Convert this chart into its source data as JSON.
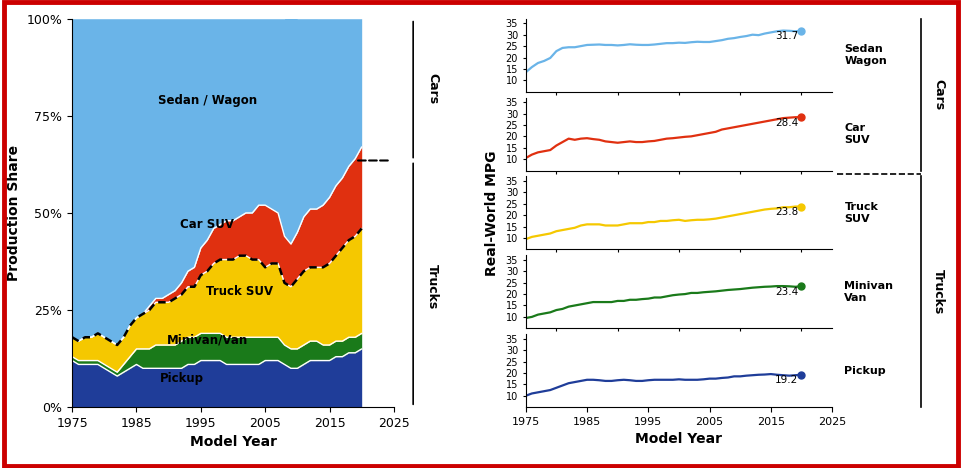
{
  "colors": {
    "pickup": "#1f3d99",
    "minivan": "#1a7a1a",
    "truck_suv": "#f5c800",
    "car_suv": "#e03010",
    "sedan": "#6ab4e8",
    "border": "#cc0000"
  },
  "stack_years": [
    1975,
    1976,
    1977,
    1978,
    1979,
    1980,
    1981,
    1982,
    1983,
    1984,
    1985,
    1986,
    1987,
    1988,
    1989,
    1990,
    1991,
    1992,
    1993,
    1994,
    1995,
    1996,
    1997,
    1998,
    1999,
    2000,
    2001,
    2002,
    2003,
    2004,
    2005,
    2006,
    2007,
    2008,
    2009,
    2010,
    2011,
    2012,
    2013,
    2014,
    2015,
    2016,
    2017,
    2018,
    2019,
    2020
  ],
  "pickup": [
    12,
    11,
    11,
    11,
    11,
    10,
    9,
    8,
    9,
    10,
    11,
    10,
    10,
    10,
    10,
    10,
    10,
    10,
    11,
    11,
    12,
    12,
    12,
    12,
    11,
    11,
    11,
    11,
    11,
    11,
    12,
    12,
    12,
    11,
    10,
    10,
    11,
    12,
    12,
    12,
    12,
    13,
    13,
    14,
    14,
    15
  ],
  "minivan": [
    1,
    1,
    1,
    1,
    1,
    1,
    1,
    1,
    2,
    3,
    4,
    5,
    5,
    6,
    6,
    6,
    6,
    7,
    7,
    7,
    7,
    7,
    7,
    7,
    7,
    7,
    7,
    7,
    7,
    7,
    6,
    6,
    6,
    5,
    5,
    5,
    5,
    5,
    5,
    4,
    4,
    4,
    4,
    4,
    4,
    4
  ],
  "truck_suv": [
    5,
    5,
    6,
    6,
    7,
    7,
    7,
    7,
    7,
    8,
    8,
    9,
    10,
    11,
    11,
    11,
    12,
    12,
    13,
    13,
    15,
    16,
    18,
    19,
    20,
    20,
    21,
    21,
    20,
    20,
    18,
    19,
    19,
    16,
    16,
    18,
    19,
    19,
    19,
    20,
    21,
    22,
    24,
    25,
    26,
    27
  ],
  "car_suv": [
    0,
    0,
    0,
    0,
    0,
    0,
    0,
    0,
    0,
    0,
    0,
    0,
    1,
    1,
    1,
    2,
    2,
    3,
    4,
    5,
    7,
    8,
    9,
    9,
    10,
    10,
    10,
    11,
    12,
    14,
    16,
    14,
    13,
    12,
    11,
    12,
    14,
    15,
    15,
    16,
    17,
    18,
    18,
    19,
    20,
    21
  ],
  "sedan": [
    82,
    83,
    82,
    82,
    81,
    82,
    83,
    84,
    82,
    79,
    77,
    76,
    74,
    72,
    72,
    71,
    70,
    68,
    65,
    64,
    59,
    57,
    54,
    53,
    52,
    52,
    51,
    50,
    50,
    48,
    48,
    49,
    50,
    56,
    59,
    55,
    51,
    49,
    49,
    48,
    46,
    43,
    41,
    38,
    36,
    33
  ],
  "mpg_years": [
    1975,
    1976,
    1977,
    1978,
    1979,
    1980,
    1981,
    1982,
    1983,
    1984,
    1985,
    1986,
    1987,
    1988,
    1989,
    1990,
    1991,
    1992,
    1993,
    1994,
    1995,
    1996,
    1997,
    1998,
    1999,
    2000,
    2001,
    2002,
    2003,
    2004,
    2005,
    2006,
    2007,
    2008,
    2009,
    2010,
    2011,
    2012,
    2013,
    2014,
    2015,
    2016,
    2017,
    2018,
    2019,
    2020
  ],
  "mpg_sedan": [
    13.5,
    15.8,
    17.6,
    18.5,
    19.8,
    22.8,
    24.2,
    24.5,
    24.5,
    25.0,
    25.5,
    25.6,
    25.7,
    25.5,
    25.5,
    25.3,
    25.5,
    25.8,
    25.6,
    25.5,
    25.5,
    25.7,
    26.0,
    26.3,
    26.3,
    26.5,
    26.4,
    26.7,
    26.9,
    26.8,
    26.8,
    27.2,
    27.6,
    28.2,
    28.5,
    29.0,
    29.4,
    30.0,
    29.8,
    30.5,
    31.0,
    31.5,
    31.8,
    31.7,
    31.5,
    31.7
  ],
  "mpg_car_suv": [
    10.5,
    12.0,
    13.0,
    13.5,
    14.0,
    16.0,
    17.5,
    19.0,
    18.5,
    19.0,
    19.2,
    18.8,
    18.5,
    17.8,
    17.5,
    17.2,
    17.5,
    17.8,
    17.5,
    17.5,
    17.8,
    18.0,
    18.5,
    19.0,
    19.2,
    19.5,
    19.8,
    20.0,
    20.5,
    21.0,
    21.5,
    22.0,
    23.0,
    23.5,
    24.0,
    24.5,
    25.0,
    25.5,
    26.0,
    26.5,
    27.0,
    27.5,
    28.0,
    28.2,
    28.4,
    28.4
  ],
  "mpg_truck_suv": [
    9.5,
    10.5,
    11.0,
    11.5,
    12.0,
    13.0,
    13.5,
    14.0,
    14.5,
    15.5,
    16.0,
    16.0,
    16.0,
    15.5,
    15.5,
    15.5,
    16.0,
    16.5,
    16.5,
    16.5,
    17.0,
    17.0,
    17.5,
    17.5,
    17.8,
    18.0,
    17.5,
    17.8,
    18.0,
    18.0,
    18.2,
    18.5,
    19.0,
    19.5,
    20.0,
    20.5,
    21.0,
    21.5,
    22.0,
    22.5,
    22.8,
    23.0,
    23.5,
    23.5,
    23.8,
    23.8
  ],
  "mpg_minivan": [
    9.5,
    10.0,
    11.0,
    11.5,
    12.0,
    13.0,
    13.5,
    14.5,
    15.0,
    15.5,
    16.0,
    16.5,
    16.5,
    16.5,
    16.5,
    17.0,
    17.0,
    17.5,
    17.5,
    17.8,
    18.0,
    18.5,
    18.5,
    19.0,
    19.5,
    19.8,
    20.0,
    20.5,
    20.5,
    20.8,
    21.0,
    21.2,
    21.5,
    21.8,
    22.0,
    22.2,
    22.5,
    22.8,
    23.0,
    23.2,
    23.3,
    23.5,
    23.5,
    23.4,
    23.2,
    23.4
  ],
  "mpg_pickup": [
    10.0,
    11.0,
    11.5,
    12.0,
    12.5,
    13.5,
    14.5,
    15.5,
    16.0,
    16.5,
    17.0,
    17.0,
    16.8,
    16.5,
    16.5,
    16.8,
    17.0,
    16.8,
    16.5,
    16.5,
    16.8,
    17.0,
    17.0,
    17.0,
    17.0,
    17.2,
    17.0,
    17.0,
    17.0,
    17.2,
    17.5,
    17.5,
    17.8,
    18.0,
    18.5,
    18.5,
    18.8,
    19.0,
    19.2,
    19.3,
    19.5,
    19.2,
    19.0,
    18.8,
    19.0,
    19.2
  ],
  "sedan_val": "31.7",
  "car_suv_val": "28.4",
  "truck_suv_val": "23.8",
  "minivan_val": "23.4",
  "pickup_val": "19.2"
}
